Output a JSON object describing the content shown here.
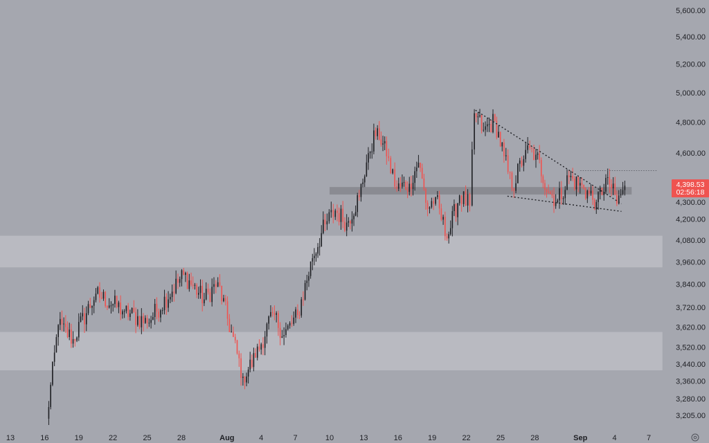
{
  "chart_data": {
    "type": "candlestick",
    "title": "",
    "xlabel": "",
    "ylabel": "",
    "y_scale": "log",
    "ylim": [
      3160,
      5700
    ],
    "y_ticks": [
      "5,600.00",
      "5,400.00",
      "5,200.00",
      "5,000.00",
      "4,800.00",
      "4,600.00",
      "4,300.00",
      "4,200.00",
      "4,080.00",
      "3,960.00",
      "3,840.00",
      "3,720.00",
      "3,620.00",
      "3,520.00",
      "3,440.00",
      "3,360.00",
      "3,280.00",
      "3,205.00"
    ],
    "y_tick_values": [
      5600,
      5400,
      5200,
      5000,
      4800,
      4600,
      4300,
      4200,
      4080,
      3960,
      3840,
      3720,
      3620,
      3520,
      3440,
      3360,
      3280,
      3205
    ],
    "x_ticks": [
      {
        "label": "13",
        "day": 0,
        "bold": false
      },
      {
        "label": "16",
        "day": 3,
        "bold": false
      },
      {
        "label": "19",
        "day": 6,
        "bold": false
      },
      {
        "label": "22",
        "day": 9,
        "bold": false
      },
      {
        "label": "25",
        "day": 12,
        "bold": false
      },
      {
        "label": "28",
        "day": 15,
        "bold": false
      },
      {
        "label": "Aug",
        "day": 19,
        "bold": true
      },
      {
        "label": "4",
        "day": 22,
        "bold": false
      },
      {
        "label": "7",
        "day": 25,
        "bold": false
      },
      {
        "label": "10",
        "day": 28,
        "bold": false
      },
      {
        "label": "13",
        "day": 31,
        "bold": false
      },
      {
        "label": "16",
        "day": 34,
        "bold": false
      },
      {
        "label": "19",
        "day": 37,
        "bold": false
      },
      {
        "label": "22",
        "day": 40,
        "bold": false
      },
      {
        "label": "25",
        "day": 43,
        "bold": false
      },
      {
        "label": "28",
        "day": 46,
        "bold": false
      },
      {
        "label": "Sep",
        "day": 50,
        "bold": true
      },
      {
        "label": "4",
        "day": 53,
        "bold": false
      },
      {
        "label": "7",
        "day": 56,
        "bold": false
      }
    ],
    "x_range_days": [
      0,
      56
    ],
    "last_price": "4,398.53",
    "countdown": "02:56:18",
    "zones": [
      {
        "name": "upper-support",
        "low": 4345,
        "high": 4390,
        "from_day": 28,
        "to_day": 54.5,
        "color": "#8a8b92"
      },
      {
        "name": "mid-zone",
        "low": 3930,
        "high": 4105,
        "from_day": -1,
        "to_day": 57.2,
        "color": "#b9bac1"
      },
      {
        "name": "lower-zone",
        "low": 3410,
        "high": 3595,
        "from_day": -1,
        "to_day": 57.2,
        "color": "#b9bac1"
      }
    ],
    "lines": [
      {
        "name": "wedge-upper",
        "from": {
          "day": 40.8,
          "price": 4880
        },
        "to": {
          "day": 53.6,
          "price": 4290
        }
      },
      {
        "name": "wedge-lower",
        "from": {
          "day": 43.6,
          "price": 4335
        },
        "to": {
          "day": 53.6,
          "price": 4245
        }
      },
      {
        "name": "resistance",
        "from": {
          "day": 50,
          "price": 4490
        },
        "to": {
          "day": 56.8,
          "price": 4490
        }
      }
    ],
    "key_closes": [
      {
        "day": 3.2,
        "price": 3190
      },
      {
        "day": 4.2,
        "price": 3630
      },
      {
        "day": 5.5,
        "price": 3560
      },
      {
        "day": 7.5,
        "price": 3790
      },
      {
        "day": 10,
        "price": 3700
      },
      {
        "day": 12,
        "price": 3640
      },
      {
        "day": 15.2,
        "price": 3890
      },
      {
        "day": 17,
        "price": 3760
      },
      {
        "day": 18.2,
        "price": 3850
      },
      {
        "day": 20.4,
        "price": 3380
      },
      {
        "day": 21.5,
        "price": 3470
      },
      {
        "day": 23,
        "price": 3690
      },
      {
        "day": 24,
        "price": 3580
      },
      {
        "day": 25.2,
        "price": 3680
      },
      {
        "day": 26.5,
        "price": 3980
      },
      {
        "day": 27.6,
        "price": 4170
      },
      {
        "day": 28.5,
        "price": 4250
      },
      {
        "day": 29.5,
        "price": 4180
      },
      {
        "day": 30.6,
        "price": 4330
      },
      {
        "day": 31.4,
        "price": 4600
      },
      {
        "day": 32.2,
        "price": 4760
      },
      {
        "day": 33,
        "price": 4580
      },
      {
        "day": 33.9,
        "price": 4380
      },
      {
        "day": 35,
        "price": 4410
      },
      {
        "day": 35.8,
        "price": 4540
      },
      {
        "day": 36.6,
        "price": 4260
      },
      {
        "day": 37.3,
        "price": 4330
      },
      {
        "day": 38.3,
        "price": 4090
      },
      {
        "day": 39.4,
        "price": 4340
      },
      {
        "day": 40.3,
        "price": 4280
      },
      {
        "day": 40.7,
        "price": 4860
      },
      {
        "day": 41.5,
        "price": 4750
      },
      {
        "day": 42.5,
        "price": 4810
      },
      {
        "day": 43.3,
        "price": 4580
      },
      {
        "day": 44,
        "price": 4380
      },
      {
        "day": 45.2,
        "price": 4620
      },
      {
        "day": 46.1,
        "price": 4590
      },
      {
        "day": 47.2,
        "price": 4360
      },
      {
        "day": 48,
        "price": 4310
      },
      {
        "day": 49,
        "price": 4450
      },
      {
        "day": 50.3,
        "price": 4380
      },
      {
        "day": 51.4,
        "price": 4300
      },
      {
        "day": 52.4,
        "price": 4450
      },
      {
        "day": 53.2,
        "price": 4290
      },
      {
        "day": 53.9,
        "price": 4398.53
      }
    ]
  }
}
